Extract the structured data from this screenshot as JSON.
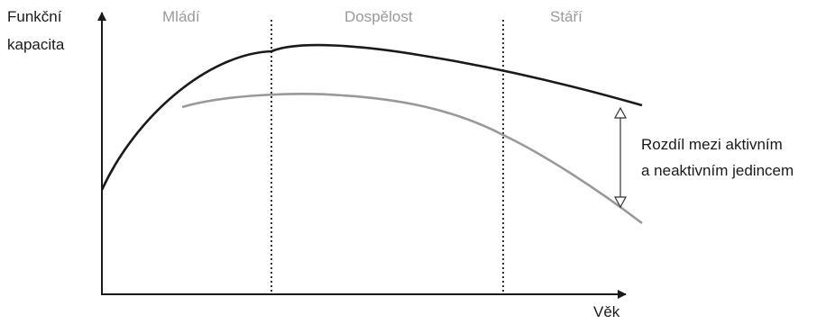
{
  "y_axis_label": {
    "line1": "Funkční",
    "line2": "kapacita"
  },
  "x_axis_label": "Věk",
  "phases": [
    {
      "label": "Mládí"
    },
    {
      "label": "Dospělost"
    },
    {
      "label": "Stáří"
    }
  ],
  "annotation": {
    "line1": "Rozdíl mezi aktivním",
    "line2": "a neaktivním jedincem"
  },
  "colors": {
    "axis": "#1a1a1a",
    "active_curve": "#1a1a1a",
    "inactive_curve": "#999999",
    "phase_text": "#9a9a9a",
    "divider": "#333333"
  }
}
